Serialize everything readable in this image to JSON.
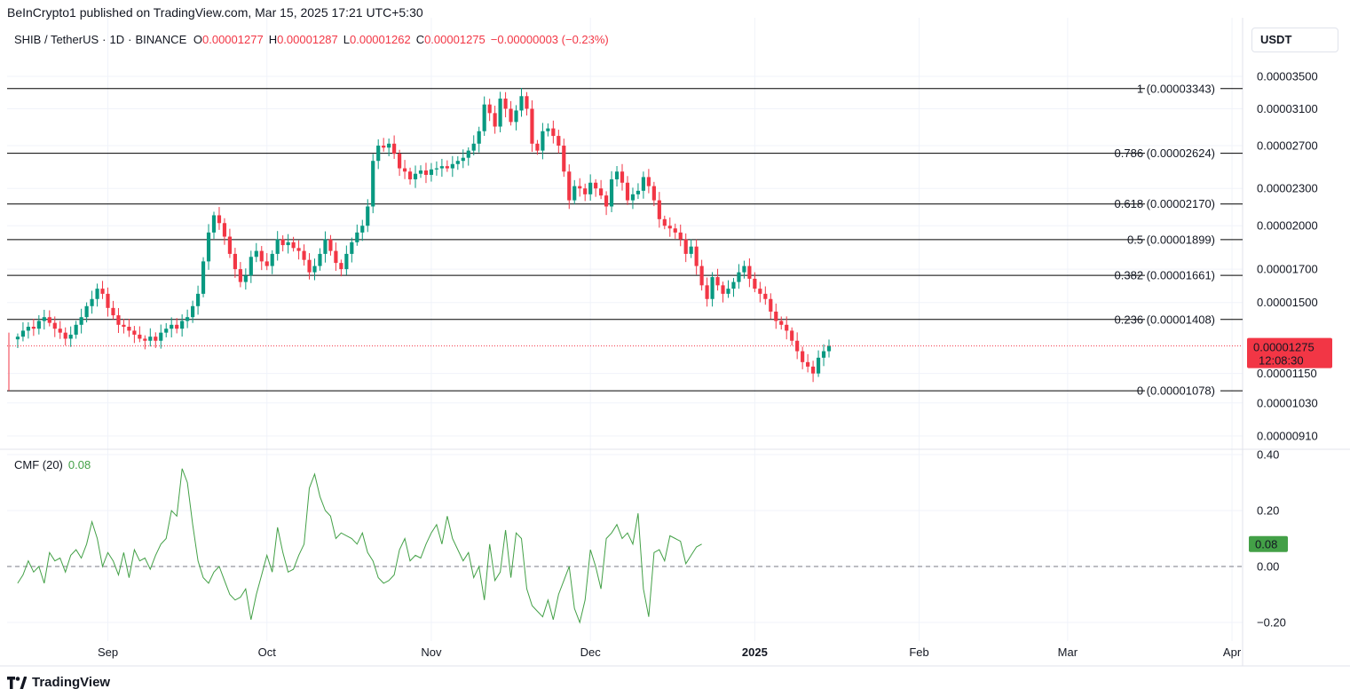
{
  "header": {
    "published": "BeInCrypto1 published on TradingView.com, Mar 15, 2025 17:21 UTC+5:30",
    "symbol": "SHIB / TetherUS",
    "interval": "1D",
    "exchange": "BINANCE",
    "open_label": "O",
    "open": "0.00001277",
    "high_label": "H",
    "high": "0.00001287",
    "low_label": "L",
    "low": "0.00001262",
    "close_label": "C",
    "close": "0.00001275",
    "change": "−0.00000003 (−0.23%)",
    "currency": "USDT"
  },
  "footer": {
    "brand": "TradingView"
  },
  "colors": {
    "up": "#089981",
    "down": "#f23645",
    "cmf_line": "#43a047",
    "fib_line": "#000000",
    "last_price_dot": "#f23645"
  },
  "chart_data": [
    {
      "type": "candlestick",
      "price_axis": {
        "ticks": [
          "0.00003500",
          "0.00003100",
          "0.00002700",
          "0.00002300",
          "0.00002000",
          "0.00001700",
          "0.00001500",
          "0.00001150",
          "0.00001030",
          "0.00000910"
        ],
        "tick_values": [
          3.5e-05,
          3.1e-05,
          2.7e-05,
          2.3e-05,
          2e-05,
          1.7e-05,
          1.5e-05,
          1.15e-05,
          1.03e-05,
          9.1e-06
        ],
        "scale": "log"
      },
      "time_axis": {
        "labels": [
          {
            "text": "Sep",
            "date": "2024-09-01"
          },
          {
            "text": "Oct",
            "date": "2024-10-01"
          },
          {
            "text": "Nov",
            "date": "2024-11-01"
          },
          {
            "text": "Dec",
            "date": "2024-12-01"
          },
          {
            "text": "2025",
            "date": "2025-01-01"
          },
          {
            "text": "Feb",
            "date": "2025-02-01"
          },
          {
            "text": "Mar",
            "date": "2025-03-01"
          },
          {
            "text": "Apr",
            "date": "2025-04-01"
          }
        ],
        "start_date": "2024-08-13",
        "end_date": "2025-04-03"
      },
      "last_price": {
        "value": 1.275e-05,
        "label": "0.00001275",
        "countdown": "12:08:30"
      },
      "fibonacci": [
        {
          "label": "1 (0.00003343)",
          "value": 3.343e-05
        },
        {
          "label": "0.786 (0.00002624)",
          "value": 2.624e-05
        },
        {
          "label": "0.618 (0.00002170)",
          "value": 2.17e-05
        },
        {
          "label": "0.5 (0.00001899)",
          "value": 1.899e-05
        },
        {
          "label": "0.382 (0.00001661)",
          "value": 1.661e-05
        },
        {
          "label": "0.236 (0.00001408)",
          "value": 1.408e-05
        },
        {
          "label": "0 (0.00001078)",
          "value": 1.078e-05
        }
      ],
      "closes_from_2024_08_15": [
        1.32,
        1.35,
        1.37,
        1.36,
        1.4,
        1.42,
        1.39,
        1.36,
        1.34,
        1.31,
        1.33,
        1.38,
        1.42,
        1.48,
        1.52,
        1.58,
        1.55,
        1.47,
        1.43,
        1.38,
        1.37,
        1.35,
        1.33,
        1.31,
        1.3,
        1.32,
        1.3,
        1.34,
        1.36,
        1.38,
        1.36,
        1.4,
        1.42,
        1.48,
        1.55,
        1.75,
        1.95,
        2.08,
        2.02,
        1.92,
        1.8,
        1.7,
        1.62,
        1.66,
        1.78,
        1.82,
        1.75,
        1.72,
        1.8,
        1.9,
        1.86,
        1.88,
        1.84,
        1.82,
        1.76,
        1.68,
        1.72,
        1.8,
        1.9,
        1.82,
        1.74,
        1.7,
        1.8,
        1.88,
        1.95,
        2.0,
        2.15,
        2.55,
        2.7,
        2.68,
        2.72,
        2.62,
        2.48,
        2.45,
        2.38,
        2.43,
        2.46,
        2.42,
        2.47,
        2.48,
        2.5,
        2.48,
        2.52,
        2.55,
        2.58,
        2.65,
        2.72,
        2.85,
        3.15,
        3.05,
        2.9,
        3.22,
        3.1,
        2.95,
        3.08,
        3.25,
        3.1,
        2.72,
        2.65,
        2.85,
        2.88,
        2.8,
        2.7,
        2.45,
        2.2,
        2.32,
        2.3,
        2.25,
        2.35,
        2.3,
        2.24,
        2.15,
        2.38,
        2.45,
        2.35,
        2.2,
        2.25,
        2.28,
        2.4,
        2.32,
        2.2,
        2.05,
        2.0,
        1.98,
        1.95,
        1.9,
        1.8,
        1.85,
        1.72,
        1.6,
        1.52,
        1.65,
        1.6,
        1.55,
        1.58,
        1.62,
        1.68,
        1.72,
        1.64,
        1.58,
        1.55,
        1.52,
        1.45,
        1.4,
        1.38,
        1.35,
        1.3,
        1.25,
        1.2,
        1.18,
        1.15,
        1.22,
        1.25,
        1.275
      ],
      "closes_unit": "0.00001 USDT"
    },
    {
      "type": "line",
      "title": "CMF (20)",
      "last_value": "0.08",
      "value_axis": {
        "ticks": [
          "0.40",
          "0.20",
          "0.00",
          "−0.20"
        ],
        "tick_values": [
          0.4,
          0.2,
          0.0,
          -0.2
        ]
      },
      "series": [
        {
          "x_start_date": "2024-08-15",
          "values": [
            -0.06,
            -0.03,
            0.02,
            -0.02,
            0.0,
            -0.06,
            0.05,
            0.02,
            0.03,
            -0.02,
            0.04,
            0.06,
            0.03,
            0.08,
            0.16,
            0.1,
            0.0,
            0.05,
            0.02,
            -0.03,
            0.05,
            -0.04,
            0.06,
            0.02,
            0.03,
            -0.01,
            0.04,
            0.08,
            0.1,
            0.2,
            0.18,
            0.35,
            0.3,
            0.15,
            0.02,
            -0.04,
            -0.06,
            -0.02,
            0.0,
            -0.05,
            -0.1,
            -0.12,
            -0.11,
            -0.08,
            -0.19,
            -0.1,
            -0.03,
            0.04,
            -0.02,
            0.14,
            0.05,
            -0.02,
            -0.01,
            0.04,
            0.08,
            0.28,
            0.33,
            0.25,
            0.2,
            0.18,
            0.1,
            0.12,
            0.11,
            0.1,
            0.08,
            0.12,
            0.05,
            0.02,
            -0.04,
            -0.06,
            -0.05,
            -0.03,
            0.06,
            0.1,
            0.02,
            0.04,
            0.03,
            0.08,
            0.12,
            0.15,
            0.08,
            0.18,
            0.1,
            0.06,
            0.02,
            0.05,
            -0.04,
            0.0,
            -0.12,
            0.08,
            -0.05,
            -0.02,
            0.13,
            -0.04,
            0.12,
            0.1,
            -0.08,
            -0.14,
            -0.16,
            -0.18,
            -0.12,
            -0.19,
            -0.1,
            -0.05,
            0.0,
            -0.15,
            -0.2,
            -0.12,
            0.06,
            0.0,
            -0.08,
            0.1,
            0.12,
            0.15,
            0.1,
            0.12,
            0.08,
            0.19,
            -0.08,
            -0.18,
            0.05,
            0.06,
            0.02,
            0.11,
            0.1,
            0.09,
            0.01,
            0.04,
            0.07,
            0.08
          ]
        }
      ]
    }
  ]
}
